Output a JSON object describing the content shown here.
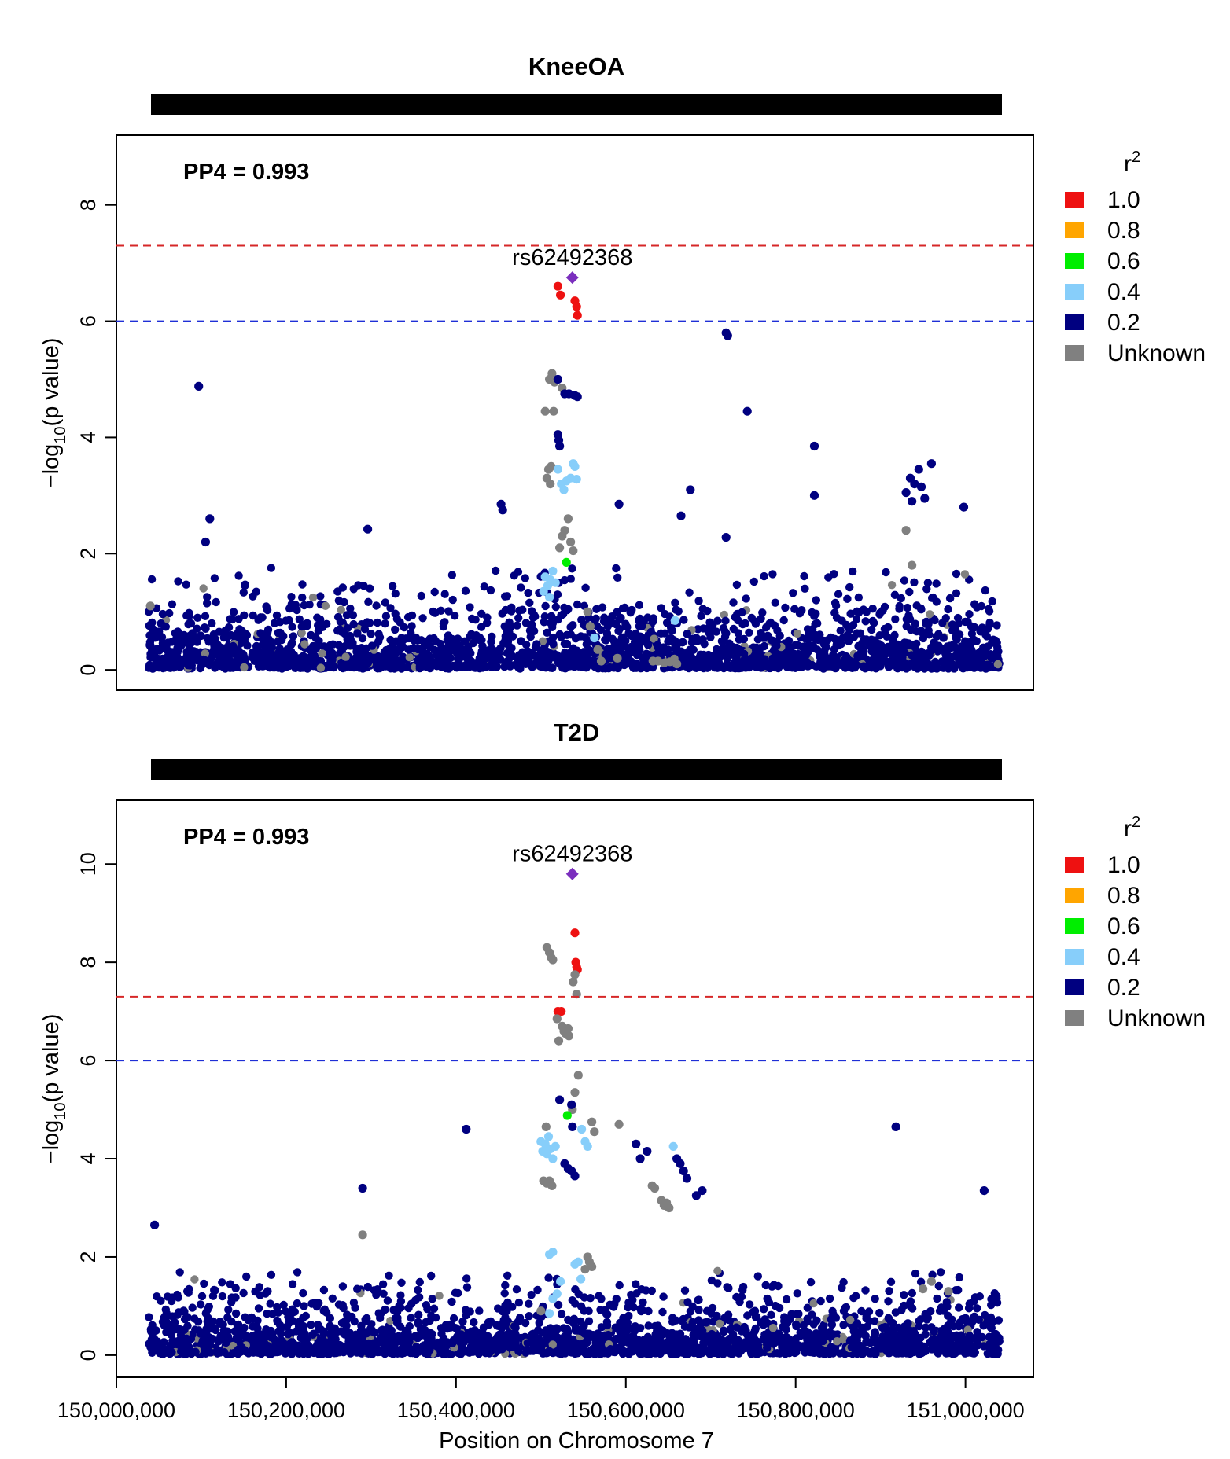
{
  "chart_data": {
    "type": "scatter",
    "xlabel": "Position on Chromosome 7",
    "xlim": [
      150000000,
      151080000
    ],
    "x_ticks": [
      150000000,
      150200000,
      150400000,
      150600000,
      150800000,
      151000000
    ],
    "x_tick_labels": [
      "150,000,000",
      "150,200,000",
      "150,400,000",
      "150,600,000",
      "150,800,000",
      "151,000,000"
    ],
    "legend": {
      "title_base": "r",
      "title_sup": "2",
      "entries": [
        {
          "label": "1.0",
          "color": "#ee1111"
        },
        {
          "label": "0.8",
          "color": "#ffa500"
        },
        {
          "label": "0.6",
          "color": "#00ee00"
        },
        {
          "label": "0.4",
          "color": "#87cefa"
        },
        {
          "label": "0.2",
          "color": "#000080"
        },
        {
          "label": "Unknown",
          "color": "#808080"
        }
      ]
    },
    "lead_color": "#7b2fbe",
    "panels": [
      {
        "title": "KneeOA",
        "pp4_text": "PP4 = 0.993",
        "ylabel_parts": [
          "−log",
          "10",
          "(p value)"
        ],
        "ylim": [
          -0.35,
          9.2
        ],
        "y_ticks": [
          0,
          2,
          4,
          6,
          8
        ],
        "genome_line": 7.3,
        "suggestive_line": 6,
        "lead_snp": {
          "label": "rs62492368",
          "x": 150537000,
          "y": 6.75
        },
        "seed": 11,
        "bg_baseline_max": 1.2,
        "bg_tail_max": 2.6,
        "annotated_points": [
          {
            "x": 150520000,
            "y": 6.6,
            "cls": "r10"
          },
          {
            "x": 150523000,
            "y": 6.45,
            "cls": "r10"
          },
          {
            "x": 150540000,
            "y": 6.35,
            "cls": "r10"
          },
          {
            "x": 150542000,
            "y": 6.25,
            "cls": "r10"
          },
          {
            "x": 150543000,
            "y": 6.1,
            "cls": "r10"
          },
          {
            "x": 150718000,
            "y": 5.8,
            "cls": "r02"
          },
          {
            "x": 150720000,
            "y": 5.75,
            "cls": "r02"
          },
          {
            "x": 150097000,
            "y": 4.88,
            "cls": "r02"
          },
          {
            "x": 150743000,
            "y": 4.45,
            "cls": "r02"
          },
          {
            "x": 150513000,
            "y": 5.1,
            "cls": "unk"
          },
          {
            "x": 150510000,
            "y": 5.0,
            "cls": "unk"
          },
          {
            "x": 150516000,
            "y": 4.95,
            "cls": "unk"
          },
          {
            "x": 150520000,
            "y": 5.0,
            "cls": "r02"
          },
          {
            "x": 150525000,
            "y": 4.85,
            "cls": "unk"
          },
          {
            "x": 150528000,
            "y": 4.75,
            "cls": "r02"
          },
          {
            "x": 150533000,
            "y": 4.75,
            "cls": "r02"
          },
          {
            "x": 150540000,
            "y": 4.72,
            "cls": "r02"
          },
          {
            "x": 150543000,
            "y": 4.7,
            "cls": "r02"
          },
          {
            "x": 150505000,
            "y": 4.45,
            "cls": "unk"
          },
          {
            "x": 150515000,
            "y": 4.45,
            "cls": "unk"
          },
          {
            "x": 150520000,
            "y": 4.05,
            "cls": "r02"
          },
          {
            "x": 150521000,
            "y": 3.95,
            "cls": "r02"
          },
          {
            "x": 150522000,
            "y": 3.85,
            "cls": "r02"
          },
          {
            "x": 150512000,
            "y": 3.5,
            "cls": "unk"
          },
          {
            "x": 150509000,
            "y": 3.45,
            "cls": "unk"
          },
          {
            "x": 150507000,
            "y": 3.3,
            "cls": "unk"
          },
          {
            "x": 150511000,
            "y": 3.2,
            "cls": "unk"
          },
          {
            "x": 150520000,
            "y": 3.45,
            "cls": "r04"
          },
          {
            "x": 150524000,
            "y": 3.2,
            "cls": "r04"
          },
          {
            "x": 150527000,
            "y": 3.1,
            "cls": "r04"
          },
          {
            "x": 150530000,
            "y": 3.25,
            "cls": "r04"
          },
          {
            "x": 150535000,
            "y": 3.3,
            "cls": "r04"
          },
          {
            "x": 150538000,
            "y": 3.55,
            "cls": "r04"
          },
          {
            "x": 150540000,
            "y": 3.5,
            "cls": "r04"
          },
          {
            "x": 150542000,
            "y": 3.28,
            "cls": "r04"
          },
          {
            "x": 150530000,
            "y": 1.85,
            "cls": "r06"
          },
          {
            "x": 150505000,
            "y": 1.6,
            "cls": "r04"
          },
          {
            "x": 150508000,
            "y": 1.45,
            "cls": "r04"
          },
          {
            "x": 150511000,
            "y": 1.55,
            "cls": "r04"
          },
          {
            "x": 150514000,
            "y": 1.7,
            "cls": "r04"
          },
          {
            "x": 150503000,
            "y": 1.35,
            "cls": "r04"
          },
          {
            "x": 150517000,
            "y": 1.5,
            "cls": "r04"
          },
          {
            "x": 150510000,
            "y": 1.25,
            "cls": "r04"
          },
          {
            "x": 150525000,
            "y": 2.3,
            "cls": "unk"
          },
          {
            "x": 150528000,
            "y": 2.4,
            "cls": "unk"
          },
          {
            "x": 150532000,
            "y": 2.6,
            "cls": "unk"
          },
          {
            "x": 150535000,
            "y": 2.2,
            "cls": "unk"
          },
          {
            "x": 150538000,
            "y": 2.05,
            "cls": "unk"
          },
          {
            "x": 150522000,
            "y": 2.1,
            "cls": "unk"
          },
          {
            "x": 150555000,
            "y": 1.0,
            "cls": "unk"
          },
          {
            "x": 150558000,
            "y": 0.75,
            "cls": "unk"
          },
          {
            "x": 150563000,
            "y": 0.55,
            "cls": "r04"
          },
          {
            "x": 150567000,
            "y": 0.35,
            "cls": "unk"
          },
          {
            "x": 150571000,
            "y": 0.15,
            "cls": "unk"
          },
          {
            "x": 150590000,
            "y": 0.2,
            "cls": "unk"
          },
          {
            "x": 150632000,
            "y": 0.15,
            "cls": "unk"
          },
          {
            "x": 150638000,
            "y": 0.15,
            "cls": "unk"
          },
          {
            "x": 150645000,
            "y": 0.12,
            "cls": "unk"
          },
          {
            "x": 150652000,
            "y": 0.14,
            "cls": "unk"
          },
          {
            "x": 150660000,
            "y": 0.1,
            "cls": "unk"
          },
          {
            "x": 150658000,
            "y": 0.85,
            "cls": "r04"
          },
          {
            "x": 150822000,
            "y": 3.85,
            "cls": "r02"
          },
          {
            "x": 150822000,
            "y": 3.0,
            "cls": "r02"
          },
          {
            "x": 150960000,
            "y": 3.55,
            "cls": "r02"
          },
          {
            "x": 150945000,
            "y": 3.45,
            "cls": "r02"
          },
          {
            "x": 150935000,
            "y": 3.3,
            "cls": "r02"
          },
          {
            "x": 150940000,
            "y": 3.2,
            "cls": "r02"
          },
          {
            "x": 150948000,
            "y": 3.15,
            "cls": "r02"
          },
          {
            "x": 150930000,
            "y": 3.05,
            "cls": "r02"
          },
          {
            "x": 150952000,
            "y": 2.95,
            "cls": "r02"
          },
          {
            "x": 150937000,
            "y": 2.9,
            "cls": "r02"
          },
          {
            "x": 150676000,
            "y": 3.1,
            "cls": "r02"
          },
          {
            "x": 150453000,
            "y": 2.85,
            "cls": "r02"
          },
          {
            "x": 150455000,
            "y": 2.75,
            "cls": "r02"
          },
          {
            "x": 150592000,
            "y": 2.85,
            "cls": "r02"
          },
          {
            "x": 150998000,
            "y": 2.8,
            "cls": "r02"
          },
          {
            "x": 150110000,
            "y": 2.6,
            "cls": "r02"
          },
          {
            "x": 150105000,
            "y": 2.2,
            "cls": "r02"
          },
          {
            "x": 150296000,
            "y": 2.42,
            "cls": "r02"
          },
          {
            "x": 150665000,
            "y": 2.65,
            "cls": "r02"
          },
          {
            "x": 150718000,
            "y": 2.28,
            "cls": "r02"
          },
          {
            "x": 150930000,
            "y": 2.4,
            "cls": "unk"
          },
          {
            "x": 150937000,
            "y": 1.8,
            "cls": "unk"
          },
          {
            "x": 150040000,
            "y": 1.1,
            "cls": "unk"
          }
        ]
      },
      {
        "title": "T2D",
        "pp4_text": "PP4 = 0.993",
        "ylabel_parts": [
          "−log",
          "10",
          "(p value)"
        ],
        "ylim": [
          -0.45,
          11.3
        ],
        "y_ticks": [
          0,
          2,
          4,
          6,
          8,
          10
        ],
        "genome_line": 7.3,
        "suggestive_line": 6,
        "lead_snp": {
          "label": "rs62492368",
          "x": 150537000,
          "y": 9.8
        },
        "seed": 23,
        "bg_baseline_max": 1.3,
        "bg_tail_max": 2.9,
        "annotated_points": [
          {
            "x": 150540000,
            "y": 8.6,
            "cls": "r10"
          },
          {
            "x": 150541000,
            "y": 8.0,
            "cls": "r10"
          },
          {
            "x": 150542000,
            "y": 7.9,
            "cls": "r10"
          },
          {
            "x": 150543000,
            "y": 7.85,
            "cls": "r10"
          },
          {
            "x": 150520000,
            "y": 7.0,
            "cls": "r10"
          },
          {
            "x": 150524000,
            "y": 7.0,
            "cls": "r10"
          },
          {
            "x": 150507000,
            "y": 8.3,
            "cls": "unk"
          },
          {
            "x": 150510000,
            "y": 8.2,
            "cls": "unk"
          },
          {
            "x": 150512000,
            "y": 8.1,
            "cls": "unk"
          },
          {
            "x": 150514000,
            "y": 8.05,
            "cls": "unk"
          },
          {
            "x": 150538000,
            "y": 7.6,
            "cls": "unk"
          },
          {
            "x": 150540000,
            "y": 7.75,
            "cls": "unk"
          },
          {
            "x": 150542000,
            "y": 7.35,
            "cls": "unk"
          },
          {
            "x": 150519000,
            "y": 6.85,
            "cls": "unk"
          },
          {
            "x": 150525000,
            "y": 6.7,
            "cls": "unk"
          },
          {
            "x": 150527000,
            "y": 6.6,
            "cls": "unk"
          },
          {
            "x": 150529000,
            "y": 6.55,
            "cls": "unk"
          },
          {
            "x": 150532000,
            "y": 6.65,
            "cls": "unk"
          },
          {
            "x": 150533000,
            "y": 6.5,
            "cls": "unk"
          },
          {
            "x": 150521000,
            "y": 6.4,
            "cls": "unk"
          },
          {
            "x": 150544000,
            "y": 5.7,
            "cls": "unk"
          },
          {
            "x": 150540000,
            "y": 5.35,
            "cls": "unk"
          },
          {
            "x": 150537000,
            "y": 5.0,
            "cls": "unk"
          },
          {
            "x": 150522000,
            "y": 5.2,
            "cls": "r02"
          },
          {
            "x": 150536000,
            "y": 5.1,
            "cls": "r02"
          },
          {
            "x": 150531000,
            "y": 4.88,
            "cls": "r06"
          },
          {
            "x": 150537000,
            "y": 4.65,
            "cls": "r02"
          },
          {
            "x": 150412000,
            "y": 4.6,
            "cls": "r02"
          },
          {
            "x": 150918000,
            "y": 4.65,
            "cls": "r02"
          },
          {
            "x": 150548000,
            "y": 4.6,
            "cls": "r04"
          },
          {
            "x": 150552000,
            "y": 4.35,
            "cls": "r04"
          },
          {
            "x": 150555000,
            "y": 4.25,
            "cls": "r04"
          },
          {
            "x": 150560000,
            "y": 4.75,
            "cls": "unk"
          },
          {
            "x": 150563000,
            "y": 4.55,
            "cls": "unk"
          },
          {
            "x": 150592000,
            "y": 4.7,
            "cls": "unk"
          },
          {
            "x": 150500000,
            "y": 4.35,
            "cls": "r04"
          },
          {
            "x": 150502000,
            "y": 4.15,
            "cls": "r04"
          },
          {
            "x": 150505000,
            "y": 4.3,
            "cls": "r04"
          },
          {
            "x": 150507000,
            "y": 4.1,
            "cls": "r04"
          },
          {
            "x": 150509000,
            "y": 4.45,
            "cls": "r04"
          },
          {
            "x": 150511000,
            "y": 4.2,
            "cls": "r04"
          },
          {
            "x": 150514000,
            "y": 4.0,
            "cls": "r04"
          },
          {
            "x": 150517000,
            "y": 4.25,
            "cls": "r04"
          },
          {
            "x": 150506000,
            "y": 4.65,
            "cls": "unk"
          },
          {
            "x": 150503000,
            "y": 3.55,
            "cls": "unk"
          },
          {
            "x": 150507000,
            "y": 3.5,
            "cls": "unk"
          },
          {
            "x": 150510000,
            "y": 3.55,
            "cls": "unk"
          },
          {
            "x": 150513000,
            "y": 3.45,
            "cls": "unk"
          },
          {
            "x": 150528000,
            "y": 3.9,
            "cls": "r02"
          },
          {
            "x": 150532000,
            "y": 3.8,
            "cls": "r02"
          },
          {
            "x": 150536000,
            "y": 3.75,
            "cls": "r02"
          },
          {
            "x": 150540000,
            "y": 3.65,
            "cls": "r02"
          },
          {
            "x": 150631000,
            "y": 3.45,
            "cls": "unk"
          },
          {
            "x": 150634000,
            "y": 3.4,
            "cls": "unk"
          },
          {
            "x": 150642000,
            "y": 3.15,
            "cls": "unk"
          },
          {
            "x": 150645000,
            "y": 3.05,
            "cls": "unk"
          },
          {
            "x": 150648000,
            "y": 3.1,
            "cls": "unk"
          },
          {
            "x": 150651000,
            "y": 3.0,
            "cls": "unk"
          },
          {
            "x": 150656000,
            "y": 4.25,
            "cls": "r04"
          },
          {
            "x": 150660000,
            "y": 4.0,
            "cls": "r02"
          },
          {
            "x": 150664000,
            "y": 3.9,
            "cls": "r02"
          },
          {
            "x": 150668000,
            "y": 3.75,
            "cls": "r02"
          },
          {
            "x": 150672000,
            "y": 3.6,
            "cls": "r02"
          },
          {
            "x": 150612000,
            "y": 4.3,
            "cls": "r02"
          },
          {
            "x": 150625000,
            "y": 4.15,
            "cls": "r02"
          },
          {
            "x": 150617000,
            "y": 4.0,
            "cls": "r02"
          },
          {
            "x": 150690000,
            "y": 3.35,
            "cls": "r02"
          },
          {
            "x": 150683000,
            "y": 3.25,
            "cls": "r02"
          },
          {
            "x": 151022000,
            "y": 3.35,
            "cls": "r02"
          },
          {
            "x": 150290000,
            "y": 3.4,
            "cls": "r02"
          },
          {
            "x": 150045000,
            "y": 2.65,
            "cls": "r02"
          },
          {
            "x": 150290000,
            "y": 2.45,
            "cls": "unk"
          },
          {
            "x": 150510000,
            "y": 2.05,
            "cls": "r04"
          },
          {
            "x": 150514000,
            "y": 2.1,
            "cls": "r04"
          },
          {
            "x": 150540000,
            "y": 1.85,
            "cls": "r04"
          },
          {
            "x": 150544000,
            "y": 1.9,
            "cls": "r04"
          },
          {
            "x": 150547000,
            "y": 1.55,
            "cls": "r04"
          },
          {
            "x": 150523000,
            "y": 1.5,
            "cls": "r04"
          },
          {
            "x": 150519000,
            "y": 1.25,
            "cls": "r04"
          },
          {
            "x": 150514000,
            "y": 1.15,
            "cls": "r04"
          },
          {
            "x": 150510000,
            "y": 0.85,
            "cls": "r04"
          },
          {
            "x": 150555000,
            "y": 2.0,
            "cls": "unk"
          },
          {
            "x": 150557000,
            "y": 1.9,
            "cls": "unk"
          },
          {
            "x": 150560000,
            "y": 1.8,
            "cls": "unk"
          },
          {
            "x": 150552000,
            "y": 1.75,
            "cls": "unk"
          },
          {
            "x": 150500000,
            "y": 0.9,
            "cls": "unk"
          },
          {
            "x": 150950000,
            "y": 1.35,
            "cls": "unk"
          },
          {
            "x": 150960000,
            "y": 1.5,
            "cls": "unk"
          },
          {
            "x": 150980000,
            "y": 1.3,
            "cls": "unk"
          }
        ]
      }
    ]
  }
}
